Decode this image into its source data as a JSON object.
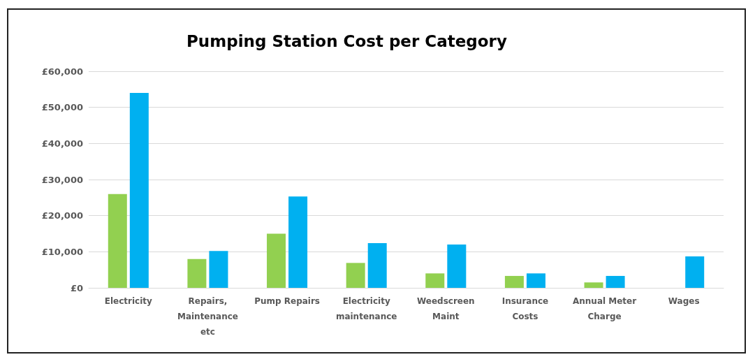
{
  "chart_data": {
    "type": "bar",
    "title": "Pumping Station Cost per Category",
    "categories": [
      "Electricity",
      "Repairs,\nMaintenance\netc",
      "Pump Repairs",
      "Electricity\nmaintenance",
      "Weedscreen\nMaint",
      "Insurance\nCosts",
      "Annual Meter\nCharge",
      "Wages"
    ],
    "series": [
      {
        "color": "#92d050",
        "values": [
          26000,
          8000,
          15000,
          6900,
          4000,
          3300,
          1500,
          null
        ]
      },
      {
        "color": "#00b0f0",
        "values": [
          54000,
          10200,
          25300,
          12400,
          12000,
          4000,
          3300,
          8700
        ]
      }
    ],
    "ylim": [
      0,
      60000
    ],
    "yticks": [
      {
        "value": 0,
        "label": "£0"
      },
      {
        "value": 10000,
        "label": "£10,000"
      },
      {
        "value": 20000,
        "label": "£20,000"
      },
      {
        "value": 30000,
        "label": "£30,000"
      },
      {
        "value": 40000,
        "label": "£40,000"
      },
      {
        "value": 50000,
        "label": "£50,000"
      },
      {
        "value": 60000,
        "label": "£60,000"
      }
    ],
    "grid": "y"
  }
}
